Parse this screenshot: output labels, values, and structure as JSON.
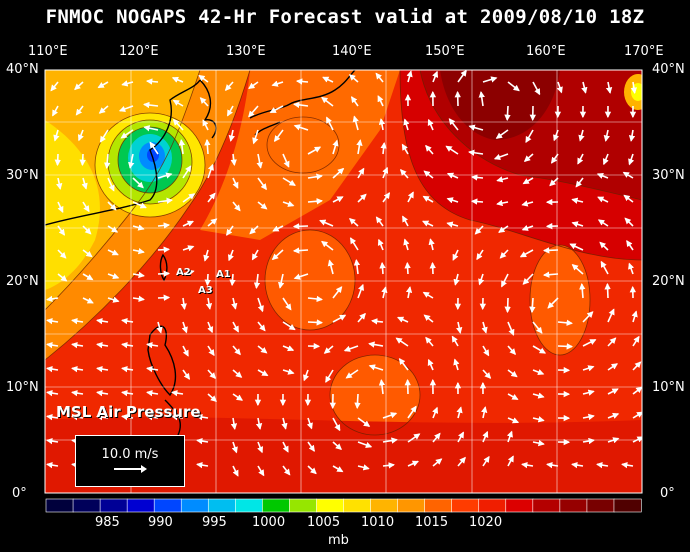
{
  "title": "FNMOC NOGAPS 42-Hr Forecast valid at 2009/08/10 18Z",
  "map": {
    "lon_labels": [
      "110°E",
      "120°E",
      "130°E",
      "140°E",
      "150°E",
      "160°E",
      "170°E"
    ],
    "lat_labels_left": [
      "40°N",
      "30°N",
      "20°N",
      "10°N",
      "0°"
    ],
    "lat_labels_right": [
      "40°N",
      "30°N",
      "20°N",
      "10°N",
      "0°"
    ],
    "field_label": "MSL Air Pressure",
    "stations": [
      "A2",
      "A1",
      "A3"
    ],
    "wind_scale_label": "10.0 m/s"
  },
  "colorbar": {
    "unit": "mb",
    "tick_labels": [
      "985",
      "990",
      "995",
      "1000",
      "1005",
      "1010",
      "1015",
      "1020"
    ],
    "colors": [
      "#00003c",
      "#00005a",
      "#000096",
      "#0000d2",
      "#0046ff",
      "#008cff",
      "#00bef0",
      "#00e6e6",
      "#00c800",
      "#96e600",
      "#ffff00",
      "#ffe100",
      "#ffb400",
      "#ff9600",
      "#ff6400",
      "#ff3c00",
      "#f01e00",
      "#dc0000",
      "#b40000",
      "#960000",
      "#780000",
      "#500000"
    ]
  }
}
